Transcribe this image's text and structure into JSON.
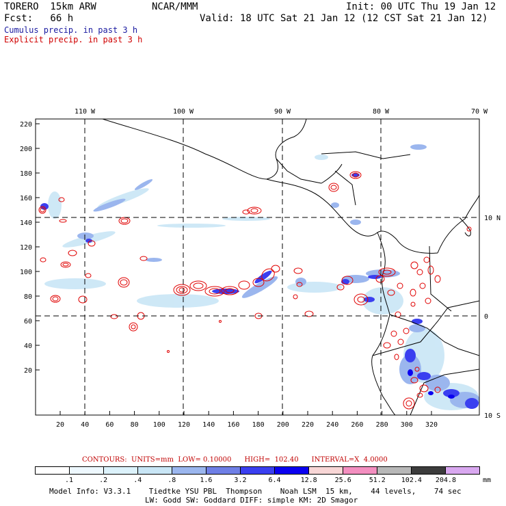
{
  "header": {
    "model": "TORERO  15km ARW",
    "center": "NCAR/MMM",
    "init": "Init: 00 UTC Thu 19 Jan 12",
    "fcst": "Fcst:   66 h",
    "valid": "Valid: 18 UTC Sat 21 Jan 12 (12 CST Sat 21 Jan 12)",
    "legend_cumulus": "Cumulus precip. in past 3 h",
    "legend_explicit": "Explicit precip. in past 3 h"
  },
  "map": {
    "top_lon_labels": [
      "110 W",
      "100 W",
      "90 W",
      "80 W",
      "70 W"
    ],
    "right_lat_labels": [
      "10 N",
      "0",
      "10 S"
    ],
    "left_y_ticks": [
      "220",
      "200",
      "180",
      "160",
      "140",
      "120",
      "100",
      "80",
      "60",
      "40",
      "20"
    ],
    "bottom_x_ticks": [
      "20",
      "40",
      "60",
      "80",
      "100",
      "120",
      "140",
      "160",
      "180",
      "200",
      "220",
      "240",
      "260",
      "280",
      "300",
      "320"
    ]
  },
  "contours": "CONTOURS:  UNITS=mm  LOW= 0.10000      HIGH=  102.40      INTERVAL=X  4.0000",
  "colorbar": {
    "labels": [
      ".1",
      ".2",
      ".4",
      ".8",
      "1.6",
      "3.2",
      "6.4",
      "12.8",
      "25.6",
      "51.2",
      "102.4",
      "204.8"
    ],
    "unit": "mm",
    "colors": [
      "#ffffff",
      "#eef8fe",
      "#dcf2fb",
      "#c9e6f6",
      "#9bb6ee",
      "#6f7fe6",
      "#3a3ff0",
      "#0a00f0",
      "#f8d6d6",
      "#f38fc0",
      "#b8b8b8",
      "#3c3c3c",
      "#d9a8f0"
    ]
  },
  "model_info": {
    "line1": "Model Info: V3.3.1    Tiedtke YSU PBL  Thompson    Noah LSM  15 km,    44 levels,    74 sec",
    "line2": "LW: Godd SW: Goddard DIFF: simple KM: 2D Smagor"
  }
}
